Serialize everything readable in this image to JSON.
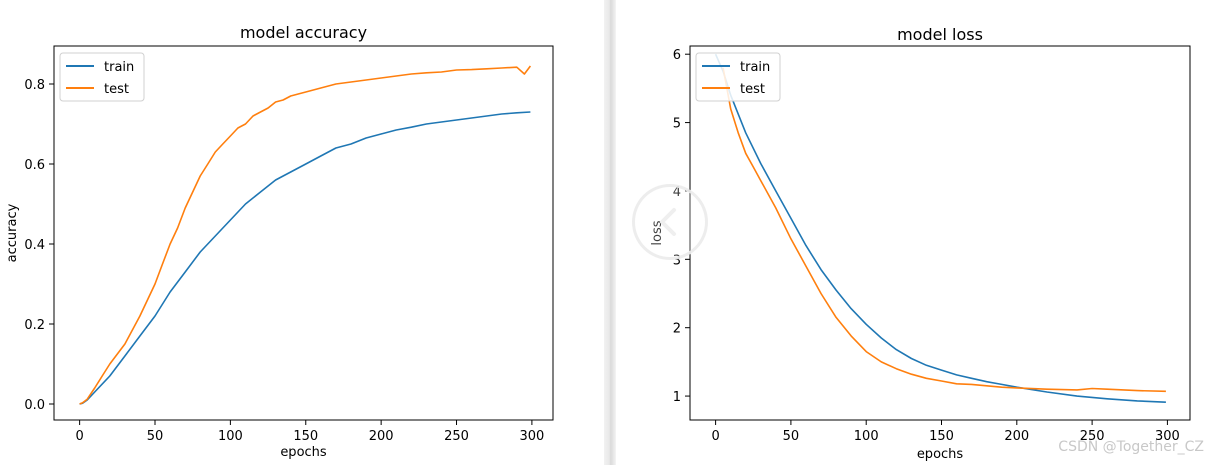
{
  "chart_data": [
    {
      "type": "line",
      "title": "model accuracy",
      "xlabel": "epochs",
      "ylabel": "accuracy",
      "xlim": [
        -17,
        314
      ],
      "ylim": [
        -0.04,
        0.895
      ],
      "xticks": [
        "0",
        "50",
        "100",
        "150",
        "200",
        "250",
        "300"
      ],
      "yticks": [
        "0.0",
        "0.2",
        "0.4",
        "0.6",
        "0.8"
      ],
      "legend_position": "upper-left",
      "grid": false,
      "series": [
        {
          "name": "train",
          "color": "#1f77b4",
          "x": [
            0,
            2,
            5,
            10,
            20,
            30,
            40,
            50,
            60,
            70,
            80,
            90,
            100,
            110,
            120,
            130,
            140,
            150,
            160,
            170,
            180,
            190,
            200,
            210,
            220,
            230,
            240,
            250,
            260,
            270,
            280,
            290,
            299
          ],
          "y": [
            0.0,
            0.002,
            0.01,
            0.03,
            0.07,
            0.12,
            0.17,
            0.22,
            0.28,
            0.33,
            0.38,
            0.42,
            0.46,
            0.5,
            0.53,
            0.56,
            0.58,
            0.6,
            0.62,
            0.64,
            0.65,
            0.665,
            0.675,
            0.685,
            0.692,
            0.7,
            0.705,
            0.71,
            0.715,
            0.72,
            0.725,
            0.728,
            0.73
          ]
        },
        {
          "name": "test",
          "color": "#ff7f0e",
          "x": [
            0,
            2,
            5,
            10,
            15,
            20,
            30,
            40,
            50,
            55,
            60,
            65,
            70,
            75,
            80,
            85,
            90,
            95,
            100,
            105,
            110,
            115,
            120,
            125,
            130,
            135,
            140,
            145,
            150,
            160,
            170,
            180,
            190,
            200,
            210,
            220,
            230,
            240,
            250,
            260,
            270,
            280,
            290,
            295,
            299
          ],
          "y": [
            0.0,
            0.003,
            0.012,
            0.04,
            0.07,
            0.1,
            0.15,
            0.22,
            0.3,
            0.35,
            0.4,
            0.44,
            0.49,
            0.53,
            0.57,
            0.6,
            0.63,
            0.65,
            0.67,
            0.69,
            0.7,
            0.72,
            0.73,
            0.74,
            0.755,
            0.76,
            0.77,
            0.775,
            0.78,
            0.79,
            0.8,
            0.805,
            0.81,
            0.815,
            0.82,
            0.825,
            0.828,
            0.83,
            0.835,
            0.836,
            0.838,
            0.84,
            0.842,
            0.825,
            0.845
          ]
        }
      ]
    },
    {
      "type": "line",
      "title": "model loss",
      "xlabel": "epochs",
      "ylabel": "loss",
      "xlim": [
        -17,
        315
      ],
      "ylim": [
        0.65,
        6.12
      ],
      "xticks": [
        "0",
        "50",
        "100",
        "150",
        "200",
        "250",
        "300"
      ],
      "yticks": [
        "1",
        "2",
        "3",
        "4",
        "5",
        "6"
      ],
      "legend_position": "upper-left",
      "grid": false,
      "series": [
        {
          "name": "train",
          "color": "#1f77b4",
          "x": [
            0,
            5,
            10,
            20,
            30,
            40,
            50,
            60,
            70,
            80,
            90,
            100,
            110,
            120,
            130,
            140,
            150,
            160,
            170,
            180,
            190,
            200,
            220,
            240,
            260,
            280,
            299
          ],
          "y": [
            6.0,
            5.75,
            5.4,
            4.85,
            4.4,
            4.0,
            3.6,
            3.2,
            2.85,
            2.55,
            2.28,
            2.05,
            1.85,
            1.68,
            1.55,
            1.45,
            1.38,
            1.31,
            1.26,
            1.21,
            1.17,
            1.13,
            1.06,
            1.0,
            0.96,
            0.93,
            0.91
          ]
        },
        {
          "name": "test",
          "color": "#ff7f0e",
          "x": [
            5,
            10,
            15,
            20,
            25,
            30,
            40,
            50,
            60,
            70,
            80,
            90,
            100,
            110,
            120,
            130,
            140,
            150,
            160,
            170,
            180,
            190,
            200,
            220,
            240,
            250,
            260,
            280,
            299
          ],
          "y": [
            5.8,
            5.2,
            4.85,
            4.55,
            4.35,
            4.15,
            3.75,
            3.3,
            2.9,
            2.5,
            2.15,
            1.88,
            1.65,
            1.5,
            1.4,
            1.32,
            1.26,
            1.22,
            1.18,
            1.17,
            1.15,
            1.13,
            1.12,
            1.1,
            1.09,
            1.11,
            1.1,
            1.08,
            1.07
          ]
        }
      ]
    }
  ],
  "overlay": {
    "nav_icon": "chevron-left-icon"
  },
  "watermark": "CSDN @Together_CZ"
}
